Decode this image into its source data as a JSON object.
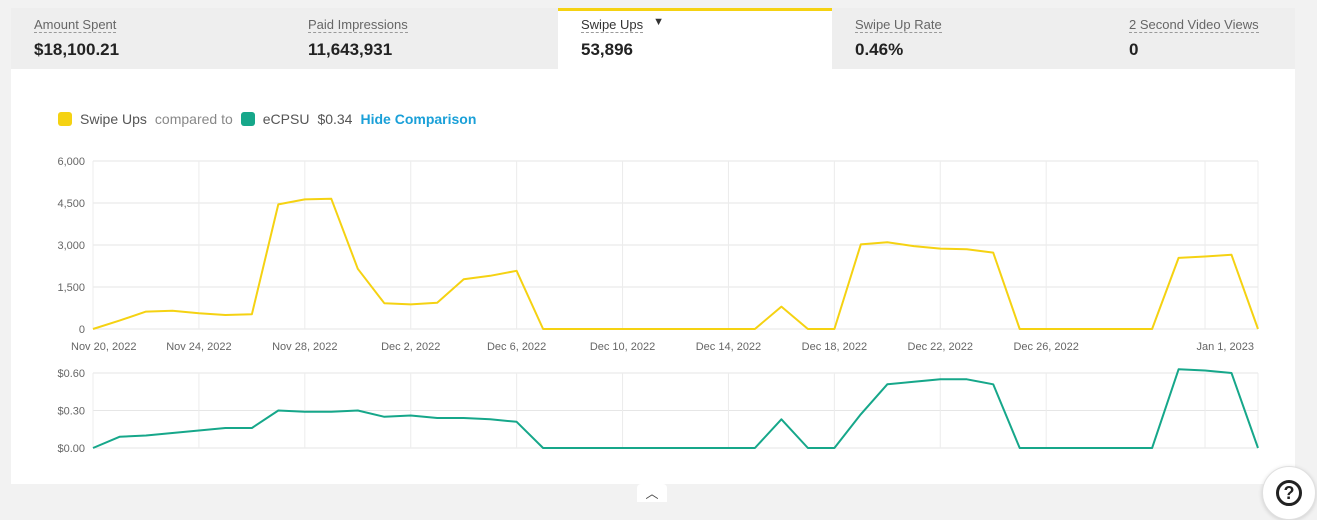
{
  "metrics": [
    {
      "label": "Amount Spent",
      "value": "$18,100.21"
    },
    {
      "label": "Paid Impressions",
      "value": "11,643,931"
    },
    {
      "label": "Swipe Ups",
      "value": "53,896",
      "caret": "▼"
    },
    {
      "label": "Swipe Up Rate",
      "value": "0.46%"
    },
    {
      "label": "2 Second Video Views",
      "value": "0"
    }
  ],
  "legend": {
    "primary_label": "Swipe Ups",
    "compared_text": "compared to",
    "secondary_label": "eCPSU",
    "secondary_value": "$0.34",
    "hide_link": "Hide Comparison"
  },
  "colors": {
    "swipe_ups": "#f5d212",
    "ecpsu": "#16a78a",
    "active_tab_accent": "#f5d212",
    "link": "#1aa0d8"
  },
  "icons": {
    "help": "question-mark-icon",
    "collapse": "chevron-up-icon"
  },
  "chart_data": [
    {
      "type": "line",
      "series": [
        {
          "name": "Swipe Ups",
          "color": "#f5d212",
          "values": [
            0,
            300,
            620,
            650,
            560,
            500,
            530,
            4450,
            4630,
            4650,
            2150,
            920,
            880,
            940,
            1780,
            1900,
            2080,
            0,
            0,
            0,
            0,
            0,
            0,
            0,
            0,
            0,
            800,
            0,
            0,
            3020,
            3100,
            2960,
            2870,
            2850,
            2730,
            0,
            0,
            0,
            0,
            0,
            0,
            2540,
            2590,
            2650,
            0
          ]
        }
      ],
      "x": [
        "2022-11-20",
        "2022-11-21",
        "2022-11-22",
        "2022-11-23",
        "2022-11-24",
        "2022-11-25",
        "2022-11-26",
        "2022-11-27",
        "2022-11-28",
        "2022-11-29",
        "2022-11-30",
        "2022-12-01",
        "2022-12-02",
        "2022-12-03",
        "2022-12-04",
        "2022-12-05",
        "2022-12-06",
        "2022-12-07",
        "2022-12-08",
        "2022-12-09",
        "2022-12-10",
        "2022-12-11",
        "2022-12-12",
        "2022-12-13",
        "2022-12-14",
        "2022-12-15",
        "2022-12-16",
        "2022-12-17",
        "2022-12-18",
        "2022-12-19",
        "2022-12-20",
        "2022-12-21",
        "2022-12-22",
        "2022-12-23",
        "2022-12-24",
        "2022-12-25",
        "2022-12-26",
        "2022-12-27",
        "2022-12-28",
        "2022-12-29",
        "2022-12-30",
        "2022-12-31",
        "2023-01-01",
        "2023-01-02",
        "2023-01-03"
      ],
      "x_tick_labels": [
        "Nov 20, 2022",
        "Nov 24, 2022",
        "Nov 28, 2022",
        "Dec 2, 2022",
        "Dec 6, 2022",
        "Dec 10, 2022",
        "Dec 14, 2022",
        "Dec 18, 2022",
        "Dec 22, 2022",
        "Dec 26, 2022",
        "Jan 1, 2023"
      ],
      "x_tick_dates": [
        "2022-11-20",
        "2022-11-24",
        "2022-11-28",
        "2022-12-02",
        "2022-12-06",
        "2022-12-10",
        "2022-12-14",
        "2022-12-18",
        "2022-12-22",
        "2022-12-26",
        "2023-01-01"
      ],
      "y_tick_labels": [
        "0",
        "1,500",
        "3,000",
        "4,500",
        "6,000"
      ],
      "ylim": [
        0,
        6000
      ],
      "grid": true
    },
    {
      "type": "line",
      "series": [
        {
          "name": "eCPSU",
          "color": "#16a78a",
          "values": [
            0.0,
            0.09,
            0.1,
            0.12,
            0.14,
            0.16,
            0.16,
            0.3,
            0.29,
            0.29,
            0.3,
            0.25,
            0.26,
            0.24,
            0.24,
            0.23,
            0.21,
            0.0,
            0.0,
            0.0,
            0.0,
            0.0,
            0.0,
            0.0,
            0.0,
            0.0,
            0.23,
            0.0,
            0.0,
            0.27,
            0.51,
            0.53,
            0.55,
            0.55,
            0.51,
            0.0,
            0.0,
            0.0,
            0.0,
            0.0,
            0.0,
            0.63,
            0.62,
            0.6,
            0.0
          ]
        }
      ],
      "x": "shared",
      "y_tick_labels": [
        "$0.00",
        "$0.30",
        "$0.60"
      ],
      "ylim": [
        0,
        0.6
      ],
      "grid": true
    }
  ]
}
